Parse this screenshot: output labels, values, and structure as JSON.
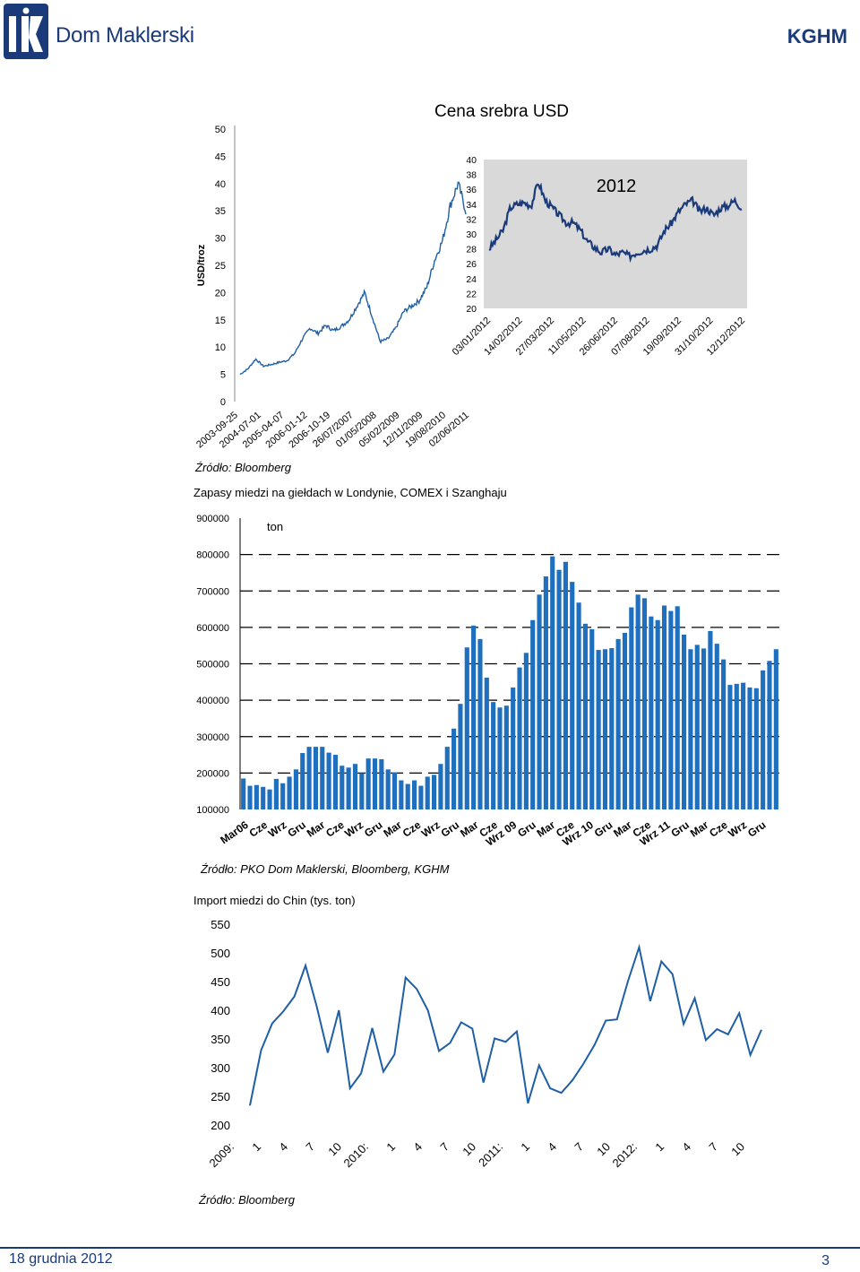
{
  "header": {
    "logo_text": "Dom Maklerski",
    "company": "KGHM"
  },
  "footer": {
    "date": "18 grudnia 2012",
    "page": "3"
  },
  "colors": {
    "brand": "#1a3a7a",
    "series": "#1f5fa5",
    "bar": "#1f6fbf",
    "inset_bg": "#d9d9d9"
  },
  "silver": {
    "source": "Źródło: Bloomberg",
    "chart_data": {
      "type": "line",
      "title": "Cena srebra USD",
      "ylabel": "USD/troz",
      "ylim": [
        0,
        50
      ],
      "y_ticks": [
        "0",
        "5",
        "10",
        "15",
        "20",
        "25",
        "30",
        "35",
        "40",
        "45",
        "50"
      ],
      "x_ticks": [
        "2003-09-25",
        "2004-07-01",
        "2005-04-07",
        "2006-01-12",
        "2006-10-19",
        "26/07/2007",
        "01/05/2008",
        "05/02/2009",
        "12/11/2009",
        "19/08/2010",
        "02/06/2011"
      ],
      "series": [
        {
          "values": [
            5.0,
            6.0,
            7.8,
            6.5,
            6.8,
            7.2,
            7.5,
            8.8,
            11.5,
            13.5,
            12.5,
            14.0,
            13.0,
            13.8,
            15.0,
            17.5,
            20.0,
            15.5,
            11.0,
            11.5,
            13.5,
            16.5,
            17.5,
            18.5,
            21.0,
            26.0,
            29.5,
            36.0,
            40.0,
            35.0
          ]
        }
      ]
    },
    "inset": {
      "chart_data": {
        "type": "line",
        "label": "2012",
        "ylim": [
          20,
          40
        ],
        "y_ticks": [
          "20",
          "22",
          "24",
          "26",
          "28",
          "30",
          "32",
          "34",
          "36",
          "38",
          "40"
        ],
        "x_ticks": [
          "03/01/2012",
          "14/02/2012",
          "27/03/2012",
          "11/05/2012",
          "26/06/2012",
          "07/08/2012",
          "19/09/2012",
          "31/10/2012",
          "12/12/2012"
        ],
        "series": [
          {
            "values": [
              28.0,
              29.2,
              30.5,
              33.5,
              34.0,
              34.2,
              33.8,
              37.0,
              34.5,
              33.5,
              32.5,
              31.5,
              31.5,
              30.5,
              29.0,
              28.2,
              27.5,
              28.0,
              27.2,
              27.5,
              27.0,
              27.5,
              27.8,
              28.0,
              28.5,
              30.5,
              31.5,
              33.0,
              34.0,
              34.5,
              33.0,
              33.5,
              32.5,
              33.5,
              33.8,
              34.5,
              33.5
            ]
          }
        ]
      }
    }
  },
  "copper": {
    "title": "Zapasy miedzi na giełdach w Londynie, COMEX i Szanghaju",
    "unit": "ton",
    "source": "Źródło: PKO Dom Maklerski, Bloomberg, KGHM",
    "chart_data": {
      "type": "bar",
      "ylim": [
        100000,
        900000
      ],
      "y_ticks": [
        "100000",
        "200000",
        "300000",
        "400000",
        "500000",
        "600000",
        "700000",
        "800000",
        "900000"
      ],
      "x_ticks": [
        "Mar06",
        "Cze",
        "Wrz",
        "Gru",
        "Mar",
        "Cze",
        "Wrz",
        "Gru",
        "Mar",
        "Cze",
        "Wrz",
        "Gru",
        "Mar",
        "Cze",
        "Wrz 09",
        "Gru",
        "Mar",
        "Cze",
        "Wrz 10",
        "Gru",
        "Mar",
        "Cze",
        "Wrz 11",
        "Gru",
        "Mar",
        "Cze",
        "Wrz",
        "Gru"
      ],
      "values": [
        185000,
        165000,
        167000,
        162000,
        155000,
        184000,
        172000,
        190000,
        210000,
        255000,
        272000,
        272000,
        272000,
        256000,
        250000,
        220000,
        215000,
        225000,
        200000,
        240000,
        240000,
        238000,
        210000,
        202000,
        180000,
        170000,
        180000,
        165000,
        190000,
        195000,
        225000,
        272000,
        322000,
        390000,
        545000,
        605000,
        568000,
        462000,
        395000,
        380000,
        385000,
        435000,
        490000,
        530000,
        620000,
        690000,
        740000,
        795000,
        758000,
        780000,
        725000,
        668000,
        610000,
        595000,
        538000,
        540000,
        543000,
        568000,
        585000,
        655000,
        690000,
        680000,
        630000,
        620000,
        660000,
        645000,
        658000,
        580000,
        540000,
        552000,
        542000,
        590000,
        555000,
        512000,
        442000,
        445000,
        448000,
        435000,
        433000,
        482000,
        508000,
        540000
      ]
    }
  },
  "china": {
    "title": "Import miedzi do Chin (tys. ton)",
    "source": "Źródło: Bloomberg",
    "chart_data": {
      "type": "line",
      "ylim": [
        200,
        550
      ],
      "y_ticks": [
        "200",
        "250",
        "300",
        "350",
        "400",
        "450",
        "500",
        "550"
      ],
      "x_ticks": [
        "2009:",
        "1",
        "4",
        "7",
        "10",
        "2010:",
        "1",
        "4",
        "7",
        "10",
        "2011:",
        "1",
        "4",
        "7",
        "10",
        "2012:",
        "1",
        "4",
        "7",
        "10"
      ],
      "series": [
        {
          "values": [
            234,
            330,
            377,
            398,
            424,
            478,
            407,
            326,
            400,
            264,
            290,
            369,
            293,
            323,
            457,
            437,
            400,
            329,
            343,
            379,
            368,
            274,
            351,
            345,
            363,
            238,
            304,
            264,
            256,
            278,
            307,
            340,
            382,
            384,
            451,
            510,
            416,
            485,
            463,
            376,
            421,
            348,
            367,
            358,
            395,
            322,
            366
          ]
        }
      ]
    }
  }
}
